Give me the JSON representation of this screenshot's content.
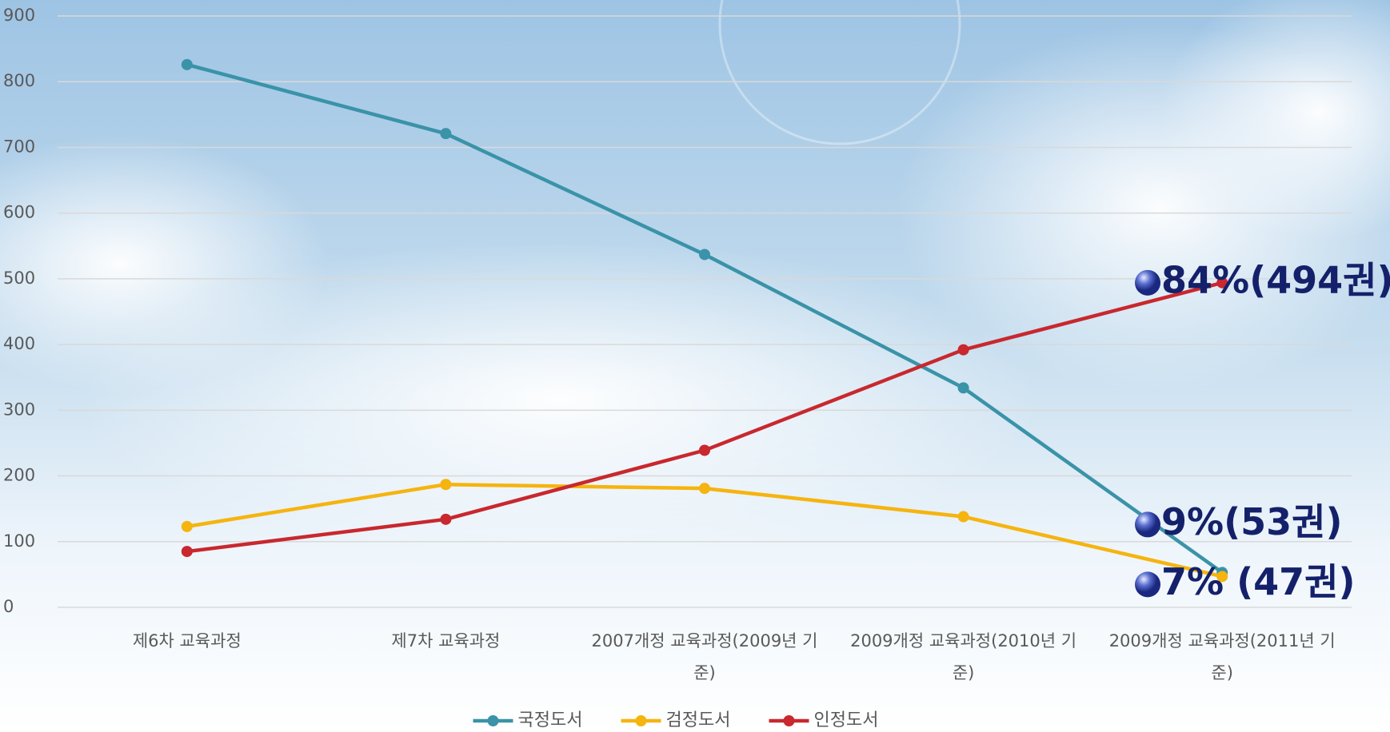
{
  "chart_data": {
    "type": "line",
    "categories": [
      "제6차 교육과정",
      "제7차 교육과정",
      "2007개정 교육과정(2009년 기준)",
      "2009개정 교육과정(2010년 기준)",
      "2009개정 교육과정(2011년 기준)"
    ],
    "series": [
      {
        "name": "국정도서",
        "color": "#3a93a8",
        "values": [
          826,
          721,
          537,
          334,
          53
        ]
      },
      {
        "name": "검정도서",
        "color": "#f5b40f",
        "values": [
          123,
          187,
          181,
          138,
          47
        ]
      },
      {
        "name": "인정도서",
        "color": "#c8282e",
        "values": [
          85,
          134,
          239,
          392,
          494
        ]
      }
    ],
    "ylim": [
      0,
      900
    ],
    "yticks": [
      0,
      100,
      200,
      300,
      400,
      500,
      600,
      700,
      800,
      900
    ],
    "grid": true,
    "legend": "bottom",
    "annotations": [
      "84%(494권)",
      "9%(53권)",
      "7% (47권)"
    ]
  }
}
